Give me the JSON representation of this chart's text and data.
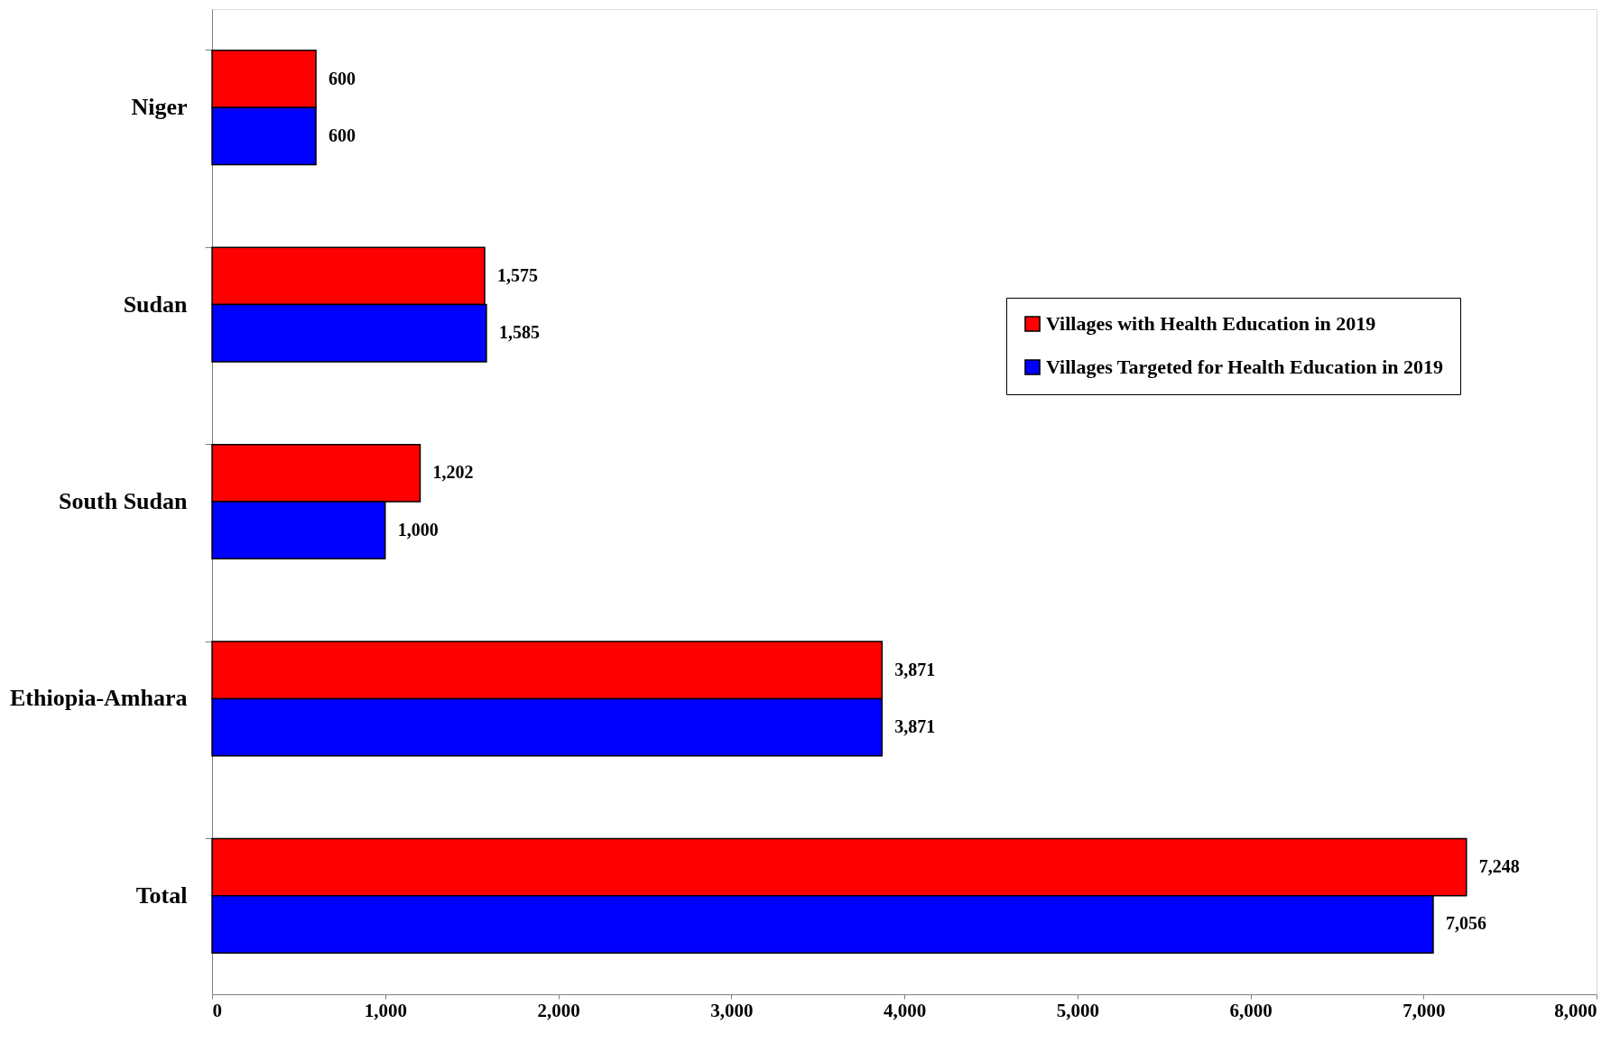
{
  "chart_data": {
    "type": "bar",
    "orientation": "horizontal",
    "categories": [
      "Niger",
      "Sudan",
      "South Sudan",
      "Ethiopia-Amhara",
      "Total"
    ],
    "series": [
      {
        "name": "Villages with Health Education in 2019",
        "color": "#ff0000",
        "values": [
          600,
          1575,
          1202,
          3871,
          7248
        ],
        "value_labels": [
          "600",
          "1,575",
          "1,202",
          "3,871",
          "7,248"
        ]
      },
      {
        "name": "Villages Targeted for Health Education in 2019",
        "color": "#0000ff",
        "values": [
          600,
          1585,
          1000,
          3871,
          7056
        ],
        "value_labels": [
          "600",
          "1,585",
          "1,000",
          "3,871",
          "7,056"
        ]
      }
    ],
    "xlim": [
      0,
      8000
    ],
    "xticks": [
      0,
      {
        "value": 1000,
        "label": "1,000"
      },
      {
        "value": 2000,
        "label": "2,000"
      },
      {
        "value": 3000,
        "label": "3,000"
      },
      {
        "value": 4000,
        "label": "4,000"
      },
      {
        "value": 5000,
        "label": "5,000"
      },
      {
        "value": 6000,
        "label": "6,000"
      },
      {
        "value": 7000,
        "label": "7,000"
      },
      {
        "value": 8000,
        "label": "8,000"
      }
    ],
    "legend": "top right",
    "grid": false
  }
}
